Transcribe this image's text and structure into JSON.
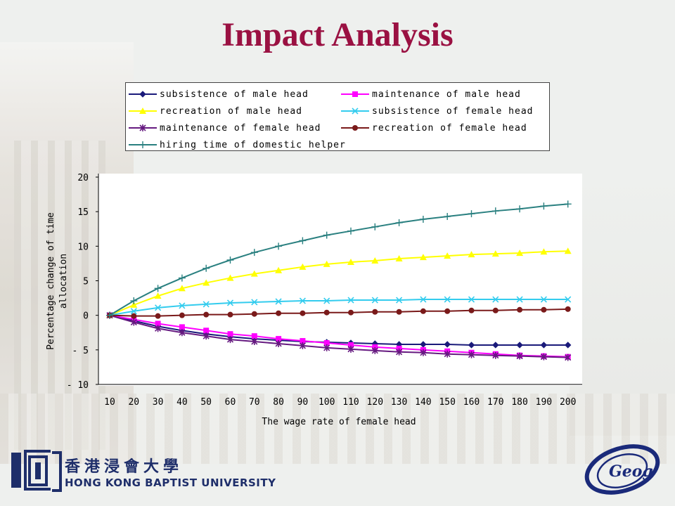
{
  "slide": {
    "title": "Impact Analysis"
  },
  "branding": {
    "university_cn": "香港浸會大學",
    "university_en": "HONG KONG BAPTIST UNIVERSITY",
    "dept_logo_text": "Geog"
  },
  "chart_data": {
    "type": "line",
    "title": "",
    "xlabel": "The wage rate of female head",
    "ylabel": "Percentage change of time allocation",
    "ylabel_lines": [
      "Percentage change of time",
      "allocation"
    ],
    "ylim": [
      -10,
      20
    ],
    "yticks": [
      -10,
      -5,
      0,
      5,
      10,
      15,
      20
    ],
    "grid": false,
    "legend_position": "top",
    "x": [
      10,
      20,
      30,
      40,
      50,
      60,
      70,
      80,
      90,
      100,
      110,
      120,
      130,
      140,
      150,
      160,
      170,
      180,
      190,
      200
    ],
    "series": [
      {
        "name": "subsistence of male head",
        "color": "#1a1a7a",
        "marker": "diamond",
        "values": [
          0,
          -0.8,
          -1.6,
          -2.2,
          -2.7,
          -3.1,
          -3.4,
          -3.6,
          -3.8,
          -3.9,
          -4.0,
          -4.1,
          -4.2,
          -4.2,
          -4.2,
          -4.3,
          -4.3,
          -4.3,
          -4.3,
          -4.3
        ]
      },
      {
        "name": "maintenance of male head",
        "color": "#ff00ff",
        "marker": "square",
        "values": [
          0,
          -0.6,
          -1.2,
          -1.7,
          -2.2,
          -2.7,
          -3.0,
          -3.4,
          -3.7,
          -4.0,
          -4.3,
          -4.6,
          -4.8,
          -5.0,
          -5.2,
          -5.4,
          -5.6,
          -5.8,
          -5.9,
          -6.0
        ]
      },
      {
        "name": "recreation of male head",
        "color": "#ffff00",
        "marker": "triangle",
        "values": [
          0,
          1.5,
          2.8,
          3.9,
          4.7,
          5.4,
          6.0,
          6.5,
          7.0,
          7.4,
          7.7,
          7.9,
          8.2,
          8.4,
          8.6,
          8.8,
          8.9,
          9.0,
          9.2,
          9.3
        ]
      },
      {
        "name": "subsistence of female head",
        "color": "#33ccee",
        "marker": "x",
        "values": [
          0,
          0.6,
          1.1,
          1.4,
          1.6,
          1.8,
          1.9,
          2.0,
          2.1,
          2.1,
          2.2,
          2.2,
          2.2,
          2.3,
          2.3,
          2.3,
          2.3,
          2.3,
          2.3,
          2.3
        ]
      },
      {
        "name": "maintenance of female head",
        "color": "#661a80",
        "marker": "star",
        "values": [
          0,
          -1.0,
          -1.9,
          -2.5,
          -3.0,
          -3.5,
          -3.8,
          -4.1,
          -4.4,
          -4.7,
          -4.9,
          -5.1,
          -5.3,
          -5.4,
          -5.6,
          -5.7,
          -5.8,
          -5.9,
          -6.0,
          -6.1
        ]
      },
      {
        "name": "recreation of female head",
        "color": "#7a1a1a",
        "marker": "circle",
        "values": [
          0,
          -0.1,
          -0.1,
          0.0,
          0.1,
          0.1,
          0.2,
          0.3,
          0.3,
          0.4,
          0.4,
          0.5,
          0.5,
          0.6,
          0.6,
          0.7,
          0.7,
          0.8,
          0.8,
          0.9
        ]
      },
      {
        "name": "hiring time of domestic helper",
        "color": "#2a8080",
        "marker": "plus",
        "values": [
          0,
          2.1,
          3.9,
          5.4,
          6.8,
          8.0,
          9.1,
          10.0,
          10.8,
          11.6,
          12.2,
          12.8,
          13.4,
          13.9,
          14.3,
          14.7,
          15.1,
          15.4,
          15.8,
          16.1
        ]
      }
    ]
  }
}
